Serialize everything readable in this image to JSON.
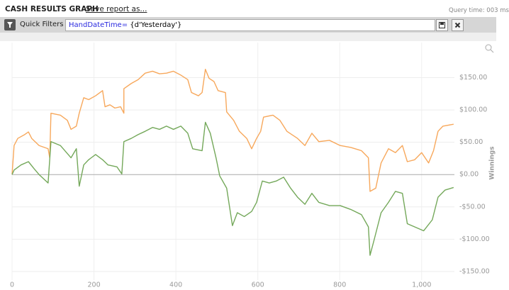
{
  "header": {
    "title": "CASH RESULTS GRAPH",
    "save_link": "Save report as...",
    "query_time": "Query time: 003 ms"
  },
  "filter_bar": {
    "label": "Quick Filters",
    "query_field": "HandDateTime=",
    "query_value": "{d'Yesterday'}"
  },
  "chart_data": {
    "type": "line",
    "y_axis_label": "Winnings",
    "xlim": [
      0,
      1080
    ],
    "xticks": [
      0,
      200,
      400,
      600,
      800,
      {
        "value": 1000,
        "label": "1,000"
      }
    ],
    "ylim": [
      -160,
      200
    ],
    "yticks": [
      {
        "value": 150,
        "label": "$150.00"
      },
      {
        "value": 100,
        "label": "$100.00"
      },
      {
        "value": 50,
        "label": "$50.00"
      },
      {
        "value": 0,
        "label": "$0.00"
      },
      {
        "value": -50,
        "label": "-$50.00"
      },
      {
        "value": -100,
        "label": "-$100.00"
      },
      {
        "value": -150,
        "label": "-$150.00"
      }
    ],
    "grid": true,
    "series": [
      {
        "color": "#f7a85c",
        "x": [
          0,
          5,
          14,
          31,
          40,
          48,
          66,
          88,
          92,
          95,
          118,
          135,
          144,
          157,
          164,
          175,
          187,
          204,
          221,
          227,
          239,
          251,
          265,
          273,
          273,
          291,
          308,
          325,
          343,
          360,
          377,
          394,
          412,
          429,
          438,
          455,
          464,
          472,
          481,
          493,
          503,
          521,
          524,
          541,
          555,
          573,
          585,
          597,
          607,
          614,
          637,
          654,
          671,
          697,
          715,
          732,
          749,
          775,
          801,
          827,
          853,
          870,
          874,
          888,
          901,
          919,
          936,
          953,
          965,
          983,
          1000,
          1017,
          1029,
          1040,
          1052,
          1078
        ],
        "values": [
          0,
          45,
          56,
          62,
          66,
          56,
          45,
          40,
          26,
          95,
          92,
          84,
          70,
          75,
          95,
          119,
          116,
          122,
          130,
          105,
          108,
          103,
          105,
          95,
          133,
          141,
          147,
          157,
          160,
          156,
          157,
          160,
          154,
          147,
          127,
          122,
          127,
          163,
          149,
          144,
          130,
          127,
          97,
          84,
          67,
          56,
          40,
          56,
          67,
          89,
          92,
          84,
          67,
          56,
          45,
          64,
          51,
          53,
          45,
          42,
          37,
          26,
          -26,
          -21,
          18,
          40,
          34,
          45,
          20,
          23,
          34,
          18,
          37,
          67,
          75,
          78
        ]
      },
      {
        "color": "#74a85a",
        "x": [
          0,
          5,
          22,
          40,
          54,
          66,
          88,
          95,
          118,
          144,
          157,
          164,
          175,
          187,
          204,
          221,
          234,
          256,
          268,
          273,
          291,
          308,
          325,
          343,
          360,
          377,
          394,
          412,
          429,
          441,
          464,
          472,
          484,
          498,
          507,
          524,
          538,
          550,
          567,
          585,
          597,
          611,
          628,
          645,
          663,
          680,
          697,
          715,
          732,
          749,
          775,
          801,
          827,
          853,
          870,
          874,
          884,
          901,
          919,
          936,
          953,
          965,
          983,
          1005,
          1026,
          1040,
          1057,
          1078
        ],
        "values": [
          0,
          7,
          15,
          20,
          9,
          0,
          -13,
          51,
          45,
          26,
          40,
          -18,
          15,
          23,
          31,
          23,
          15,
          12,
          1,
          51,
          56,
          62,
          67,
          73,
          70,
          75,
          70,
          75,
          64,
          40,
          37,
          81,
          64,
          26,
          -2,
          -21,
          -79,
          -59,
          -65,
          -57,
          -43,
          -10,
          -13,
          -10,
          -4,
          -21,
          -35,
          -46,
          -29,
          -43,
          -48,
          -48,
          -54,
          -62,
          -81,
          -125,
          -101,
          -59,
          -43,
          -26,
          -29,
          -76,
          -81,
          -87,
          -70,
          -35,
          -24,
          -20
        ]
      }
    ]
  }
}
